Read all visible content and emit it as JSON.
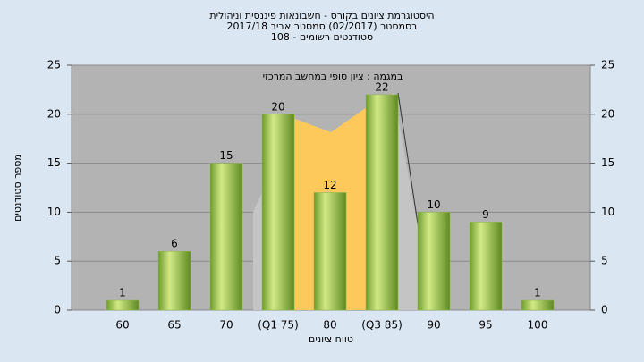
{
  "chart_data": {
    "type": "bar",
    "title": "היסטוגרמת ציונים בקורס - חשבונאות פיננסית וניהולית",
    "subtitle": "בסמסטר  (02/2017)  סמסטר אביב 2017/18",
    "subtitle2": "סטודנטים רשומים - 108",
    "annotation": "במגמה : ציון סופי במחשב המרכזי",
    "xlabel": "טווח ציונים",
    "ylabel": "מספר סטודנטים",
    "categories": [
      "60",
      "65",
      "70",
      "(Q1 75)",
      "80",
      "(Q3 85)",
      "90",
      "95",
      "100"
    ],
    "values": [
      1,
      6,
      15,
      20,
      12,
      22,
      10,
      9,
      1
    ],
    "color": "#8cb84a",
    "ylim": [
      0,
      25
    ],
    "yticks": [
      0,
      5,
      10,
      15,
      20,
      25
    ],
    "y2lim": [
      0,
      25
    ],
    "y2ticks": [
      0,
      5,
      10,
      15,
      20,
      25
    ],
    "grid": true
  }
}
